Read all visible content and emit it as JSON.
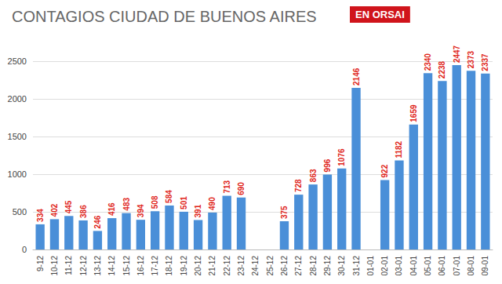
{
  "chart_data": {
    "type": "bar",
    "title": "CONTAGIOS CIUDAD DE BUENOS AIRES",
    "subtitle": "EN ORSAI",
    "categories": [
      "9-12",
      "10-12",
      "11-12",
      "12-12",
      "13-12",
      "14-12",
      "15-12",
      "16-12",
      "17-12",
      "18-12",
      "19-12",
      "20-12",
      "21-12",
      "22-12",
      "23-12",
      "24-12",
      "25-12",
      "26-12",
      "27-12",
      "28-12",
      "29-12",
      "30-12",
      "31-12",
      "01-01",
      "02-01",
      "03-01",
      "04-01",
      "05-01",
      "06-01",
      "07-01",
      "08-01",
      "09-01"
    ],
    "values": [
      334,
      402,
      445,
      386,
      246,
      416,
      483,
      394,
      508,
      584,
      501,
      391,
      490,
      713,
      690,
      null,
      null,
      375,
      728,
      863,
      996,
      1076,
      2146,
      null,
      922,
      1182,
      1659,
      2340,
      2238,
      2447,
      2373,
      2337
    ],
    "color": "#4a8fd8",
    "ylim": [
      0,
      2500
    ],
    "yticks": [
      0,
      500,
      1000,
      1500,
      2000,
      2500
    ],
    "grid": true,
    "data_labels": true
  }
}
